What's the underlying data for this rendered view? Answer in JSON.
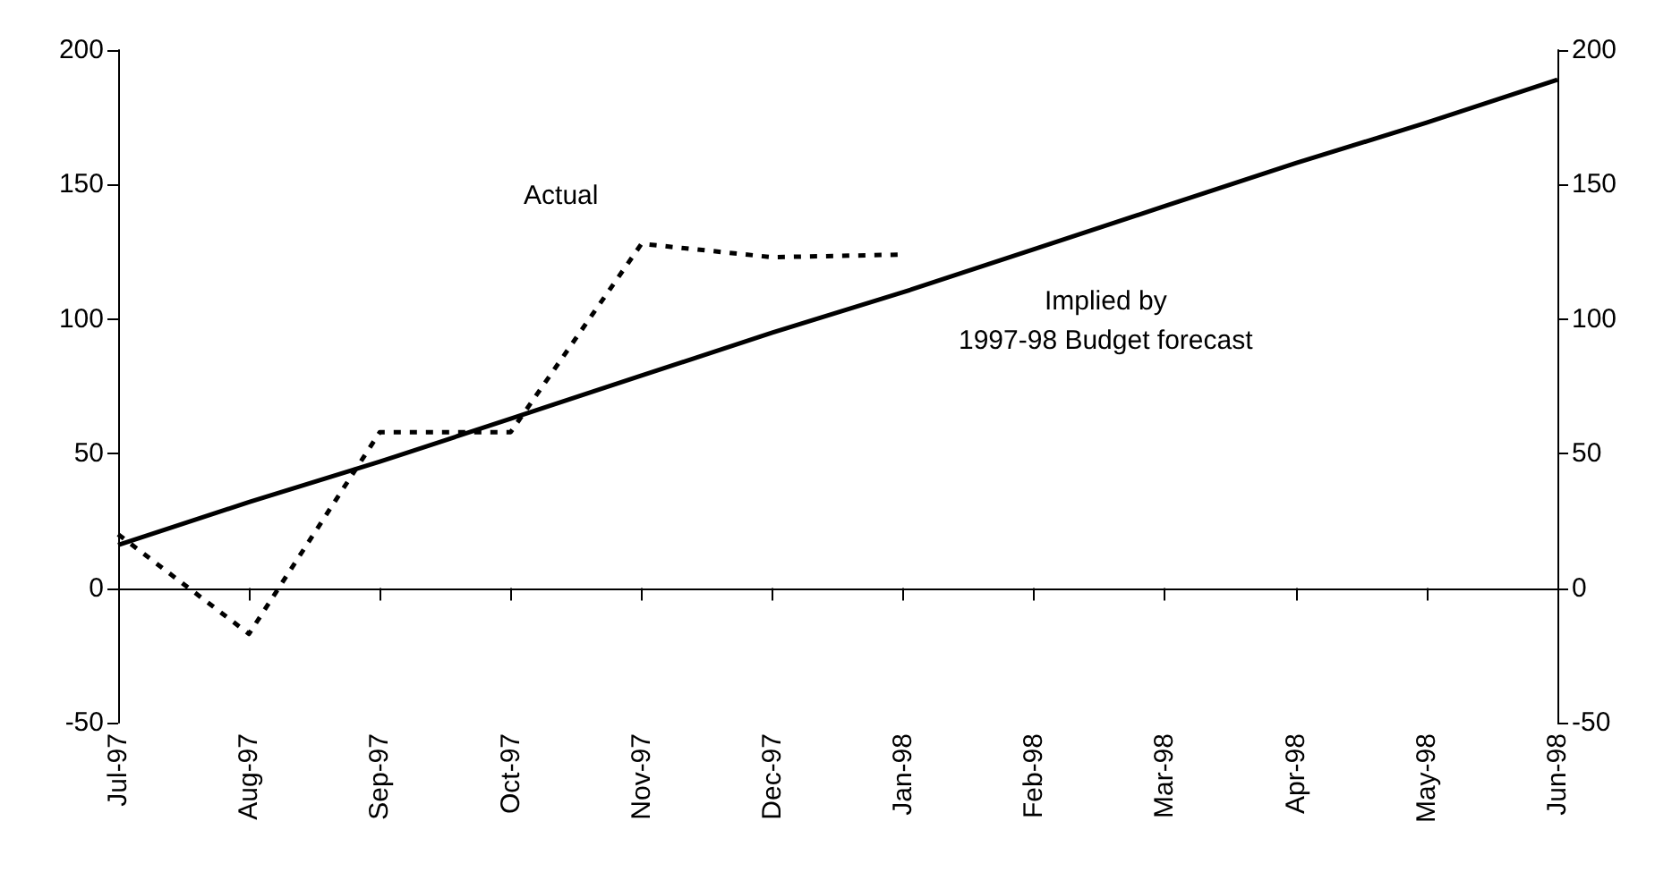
{
  "chart_data": {
    "type": "line",
    "categories": [
      "Jul-97",
      "Aug-97",
      "Sep-97",
      "Oct-97",
      "Nov-97",
      "Dec-97",
      "Jan-98",
      "Feb-98",
      "Mar-98",
      "Apr-98",
      "May-98",
      "Jun-98"
    ],
    "series": [
      {
        "name": "Actual",
        "color": "#000000",
        "line_style": "dashed",
        "values": [
          20,
          -17,
          58,
          58,
          128,
          123,
          124,
          null,
          null,
          null,
          null,
          null
        ]
      },
      {
        "name": "Implied by\n1997-98 Budget forecast",
        "color": "#000000",
        "line_style": "solid",
        "values": [
          16,
          32,
          47,
          63,
          79,
          95,
          110,
          126,
          142,
          158,
          173,
          189
        ]
      }
    ],
    "ylim": [
      -50,
      200
    ],
    "yticks": [
      -50,
      0,
      50,
      100,
      150,
      200
    ],
    "y2lim": [
      -50,
      200
    ],
    "y2ticks": [
      -50,
      0,
      50,
      100,
      150,
      200
    ],
    "legend": false,
    "marker": "none"
  }
}
